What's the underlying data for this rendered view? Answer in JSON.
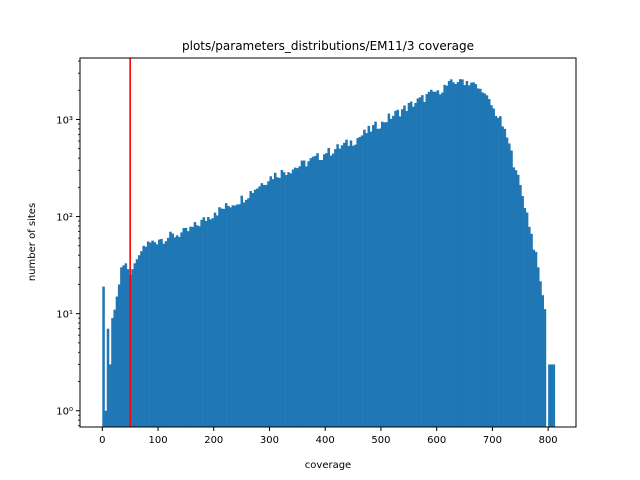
{
  "chart_data": {
    "type": "bar",
    "title": "plots/parameters_distributions/EM11/3 coverage",
    "xlabel": "coverage",
    "ylabel": "number of sites",
    "x_scale": "linear",
    "y_scale": "log",
    "xlim": [
      -40,
      850
    ],
    "ylim": [
      0.68,
      4300
    ],
    "x_ticks": [
      0,
      100,
      200,
      300,
      400,
      500,
      600,
      700,
      800
    ],
    "x_tick_labels": [
      "0",
      "100",
      "200",
      "300",
      "400",
      "500",
      "600",
      "700",
      "800"
    ],
    "y_ticks": [
      1,
      10,
      100,
      1000
    ],
    "y_tick_labels": [
      "10⁰",
      "10¹",
      "10²",
      "10³"
    ],
    "bin_width": 4,
    "series": [
      {
        "color": "#1f77b4",
        "profile": [
          [
            0,
            19
          ],
          [
            4,
            1
          ],
          [
            8,
            7
          ],
          [
            12,
            3
          ],
          [
            16,
            9
          ],
          [
            20,
            11
          ],
          [
            24,
            15
          ],
          [
            28,
            20
          ],
          [
            32,
            30
          ],
          [
            40,
            33
          ],
          [
            48,
            25
          ],
          [
            56,
            33
          ],
          [
            64,
            40
          ],
          [
            72,
            50
          ],
          [
            100,
            58
          ],
          [
            150,
            70
          ],
          [
            200,
            110
          ],
          [
            250,
            155
          ],
          [
            300,
            260
          ],
          [
            350,
            330
          ],
          [
            400,
            450
          ],
          [
            450,
            610
          ],
          [
            500,
            950
          ],
          [
            550,
            1400
          ],
          [
            600,
            2000
          ],
          [
            640,
            2600
          ],
          [
            660,
            2400
          ],
          [
            680,
            1900
          ],
          [
            700,
            1300
          ],
          [
            720,
            800
          ],
          [
            740,
            300
          ],
          [
            760,
            110
          ],
          [
            780,
            30
          ],
          [
            796,
            8
          ],
          [
            800,
            3
          ],
          [
            808,
            3
          ]
        ],
        "zero_bins": [
          796
        ]
      }
    ],
    "vline": {
      "x": 50,
      "color": "#ff0000"
    },
    "grid": false,
    "legend": "none"
  }
}
